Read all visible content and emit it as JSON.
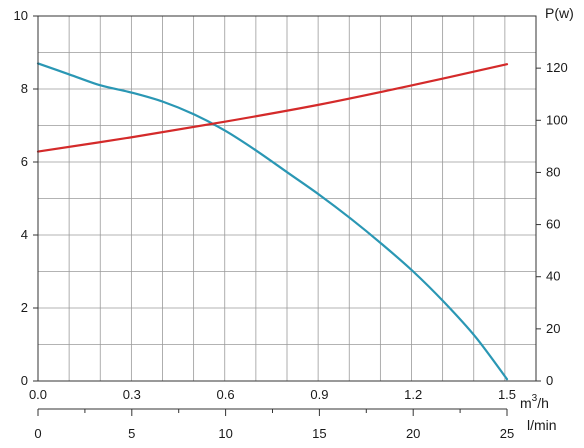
{
  "chart_data": {
    "type": "line",
    "title": "",
    "x_axis_primary": {
      "unit_base": "m",
      "unit_exp": "3",
      "unit_rest": "/h",
      "range": [
        0,
        1.5
      ],
      "ticks": [
        0,
        0.3,
        0.6,
        0.9,
        1.2,
        1.5
      ],
      "tick_labels": [
        "0.0",
        "0.3",
        "0.6",
        "0.9",
        "1.2",
        "1.5"
      ]
    },
    "x_axis_secondary": {
      "unit": "l/min",
      "range": [
        0,
        25
      ],
      "ticks": [
        0,
        5,
        10,
        15,
        20,
        25
      ],
      "tick_labels": [
        "0",
        "5",
        "10",
        "15",
        "20",
        "25"
      ]
    },
    "y_axis_left": {
      "label": "",
      "range": [
        0,
        10
      ],
      "ticks": [
        0,
        2,
        4,
        6,
        8,
        10
      ],
      "tick_labels": [
        "0",
        "2",
        "4",
        "6",
        "8",
        "10"
      ]
    },
    "y_axis_right": {
      "label": "P(w)",
      "range": [
        0,
        140
      ],
      "ticks": [
        0,
        20,
        40,
        60,
        80,
        100,
        120
      ],
      "tick_labels": [
        "0",
        "20",
        "40",
        "60",
        "80",
        "100",
        "120"
      ]
    },
    "grid": true,
    "series": [
      {
        "axis": "left",
        "color": "#2a97b4",
        "x": [
          0,
          0.1,
          0.2,
          0.3,
          0.4,
          0.5,
          0.6,
          0.7,
          0.8,
          0.9,
          1.0,
          1.1,
          1.2,
          1.3,
          1.4,
          1.5
        ],
        "y": [
          8.7,
          8.4,
          8.1,
          7.9,
          7.65,
          7.3,
          6.85,
          6.3,
          5.7,
          5.1,
          4.45,
          3.75,
          3.0,
          2.15,
          1.2,
          0.05
        ]
      },
      {
        "axis": "right",
        "color": "#d42a2a",
        "x": [
          0,
          0.3,
          0.6,
          0.9,
          1.2,
          1.5
        ],
        "y": [
          88,
          93.5,
          99.5,
          106,
          113.5,
          121.5
        ]
      }
    ]
  }
}
